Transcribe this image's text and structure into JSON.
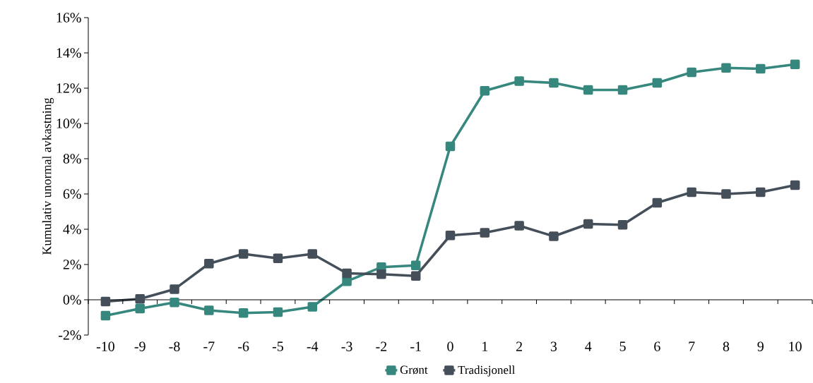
{
  "chart_data": {
    "type": "line",
    "ylabel": "Kumulativ unormal avkastning",
    "categories": [
      "-10",
      "-9",
      "-8",
      "-7",
      "-6",
      "-5",
      "-4",
      "-3",
      "-2",
      "-1",
      "0",
      "1",
      "2",
      "3",
      "4",
      "5",
      "6",
      "7",
      "8",
      "9",
      "10"
    ],
    "series": [
      {
        "name": "Grønt",
        "color": "#36877e",
        "values": [
          -0.9,
          -0.5,
          -0.15,
          -0.6,
          -0.75,
          -0.7,
          -0.4,
          1.05,
          1.85,
          1.95,
          8.7,
          11.85,
          12.4,
          12.3,
          11.9,
          11.9,
          12.3,
          12.9,
          13.15,
          13.1,
          13.35
        ]
      },
      {
        "name": "Tradisjonell",
        "color": "#444f5a",
        "values": [
          -0.1,
          0.05,
          0.6,
          2.05,
          2.6,
          2.35,
          2.6,
          1.5,
          1.45,
          1.35,
          3.65,
          3.8,
          4.2,
          3.6,
          4.3,
          4.25,
          5.5,
          6.1,
          6.0,
          6.1,
          6.5
        ]
      }
    ],
    "ylim": [
      -2,
      16
    ],
    "yticks": [
      {
        "value": -2,
        "label": "-2%"
      },
      {
        "value": 0,
        "label": "0%"
      },
      {
        "value": 2,
        "label": "2%"
      },
      {
        "value": 4,
        "label": "4%"
      },
      {
        "value": 6,
        "label": "6%"
      },
      {
        "value": 8,
        "label": "8%"
      },
      {
        "value": 10,
        "label": "10%"
      },
      {
        "value": 12,
        "label": "12%"
      },
      {
        "value": 14,
        "label": "14%"
      },
      {
        "value": 16,
        "label": "16%"
      }
    ],
    "marker": "square",
    "line_style": "solid",
    "legend": "bottom"
  }
}
